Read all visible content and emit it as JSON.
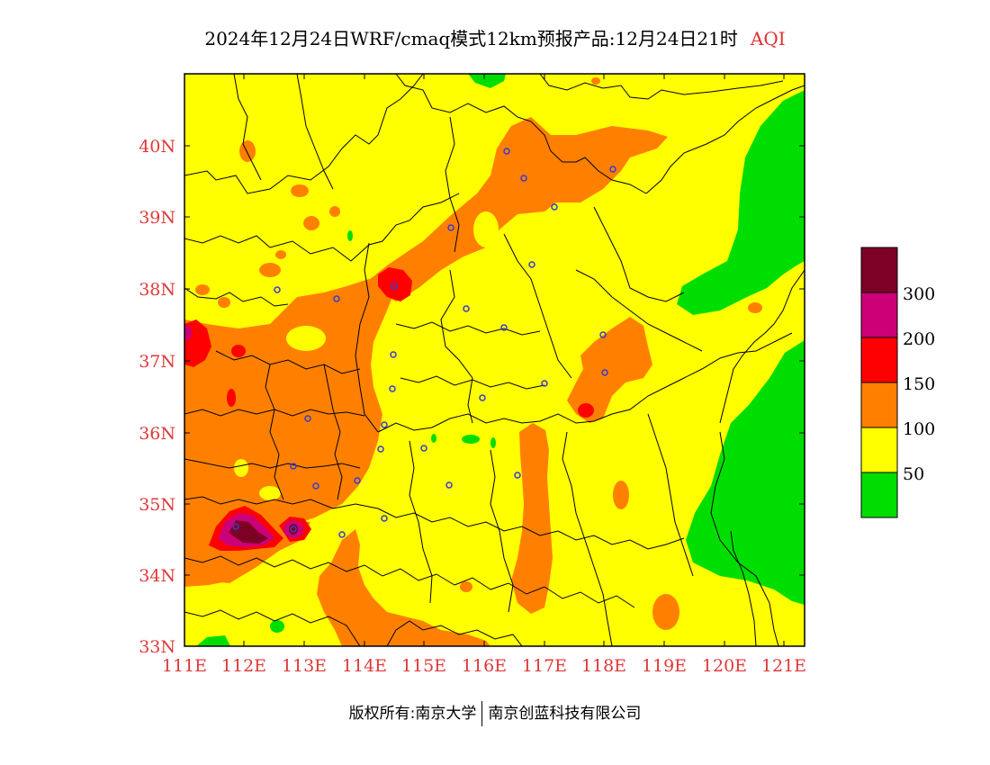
{
  "title": {
    "main": "2024年12月24日WRF/cmaq模式12km预报产品:12月24日21时",
    "variable": "AQI"
  },
  "axes": {
    "lat_labels": [
      "40N",
      "39N",
      "38N",
      "37N",
      "36N",
      "35N",
      "34N",
      "33N"
    ],
    "lon_labels": [
      "111E",
      "112E",
      "113E",
      "114E",
      "115E",
      "116E",
      "117E",
      "118E",
      "119E",
      "120E",
      "121E"
    ]
  },
  "legend": {
    "bins": [
      {
        "color": "#00dd00"
      },
      {
        "color": "#ffff00"
      },
      {
        "color": "#ff8000"
      },
      {
        "color": "#ff0000"
      },
      {
        "color": "#cc0077"
      },
      {
        "color": "#7d0025"
      }
    ],
    "labels": [
      "50",
      "100",
      "150",
      "200",
      "300"
    ]
  },
  "map": {
    "palette": {
      "good": "#00dd00",
      "moderate": "#ffff00",
      "unhealthy_sensitive": "#ff8000",
      "unhealthy": "#ff0000",
      "very_unhealthy": "#cc0077",
      "hazardous": "#7d0025",
      "city_marker": "#3a3ad0",
      "border": "#000000"
    }
  },
  "credit": {
    "left": "版权所有:南京大学",
    "right": "南京创蓝科技有限公司"
  }
}
